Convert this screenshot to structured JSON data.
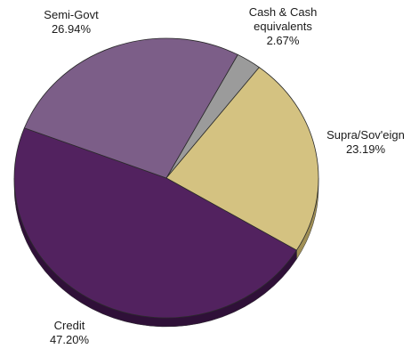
{
  "chart_data": {
    "type": "pie",
    "style": "3d",
    "slices": [
      {
        "label": "Cash & Cash equivalents",
        "label_lines": [
          "Cash & Cash",
          "equivalents"
        ],
        "value": 2.67,
        "value_label": "2.67%",
        "color": "#9b9b9b",
        "side_color": "#6a6a6a"
      },
      {
        "label": "Supra/Sov'eign",
        "label_lines": [
          "Supra/Sov'eign"
        ],
        "value": 23.19,
        "value_label": "23.19%",
        "color": "#d4c281",
        "side_color": "#a08f55"
      },
      {
        "label": "Credit",
        "label_lines": [
          "Credit"
        ],
        "value": 47.2,
        "value_label": "47.20%",
        "color": "#52225f",
        "side_color": "#2f1038"
      },
      {
        "label": "Semi-Govt",
        "label_lines": [
          "Semi-Govt"
        ],
        "value": 26.94,
        "value_label": "26.94%",
        "color": "#7c5e88",
        "side_color": "#4f3a58"
      }
    ]
  }
}
